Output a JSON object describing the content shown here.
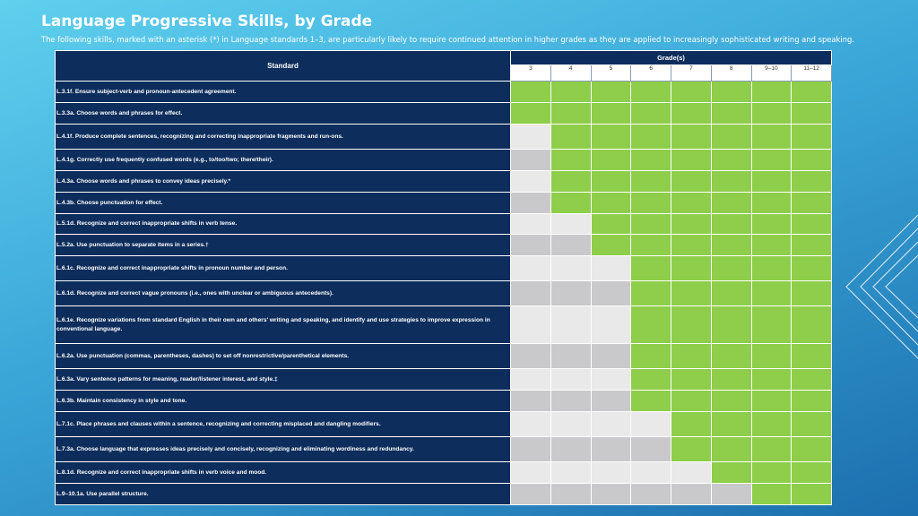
{
  "header": {
    "title": "Language Progressive Skills, by Grade",
    "subtitle": "The following skills, marked with an asterisk (*) in Language standards 1–3, are particularly likely to require continued attention in higher grades as they are applied to increasingly sophisticated writing and speaking."
  },
  "table": {
    "standard_header": "Standard",
    "grades_header": "Grade(s)",
    "grades": [
      "3",
      "4",
      "5",
      "6",
      "7",
      "8",
      "9–10",
      "11–12"
    ],
    "colors": {
      "applies": "#8ece4a",
      "not_applicable_light": "#e9e9ea",
      "not_applicable_dark": "#c9c9cc",
      "label_bg": "#0d2d5c"
    },
    "rows": [
      {
        "standard": "L.3.1f. Ensure subject-verb and pronoun-antecedent agreement.",
        "start_grade_index": 0
      },
      {
        "standard": "L.3.3a. Choose words and phrases for effect.",
        "start_grade_index": 0
      },
      {
        "standard": "L.4.1f. Produce complete sentences, recognizing and correcting inappropriate fragments and run-ons.",
        "start_grade_index": 1
      },
      {
        "standard": "L.4.1g. Correctly use frequently confused words (e.g., to/too/two; there/their).",
        "start_grade_index": 1
      },
      {
        "standard": "L.4.3a. Choose words and phrases to convey ideas precisely.*",
        "start_grade_index": 1
      },
      {
        "standard": "L.4.3b. Choose punctuation for effect.",
        "start_grade_index": 1
      },
      {
        "standard": "L.5.1d. Recognize and correct inappropriate shifts in verb tense.",
        "start_grade_index": 2
      },
      {
        "standard": "L.5.2a. Use punctuation to separate items in a series.†",
        "start_grade_index": 2
      },
      {
        "standard": "L.6.1c. Recognize and correct inappropriate shifts in pronoun number and person.",
        "start_grade_index": 3
      },
      {
        "standard": "L.6.1d. Recognize and correct vague pronouns (i.e., ones with unclear or ambiguous antecedents).",
        "start_grade_index": 3
      },
      {
        "standard": "L.6.1e. Recognize variations from standard English in their own and others' writing and speaking, and identify and use strategies to improve expression in conventional language.",
        "start_grade_index": 3
      },
      {
        "standard": "L.6.2a. Use punctuation (commas, parentheses, dashes) to set off nonrestrictive/parenthetical elements.",
        "start_grade_index": 3
      },
      {
        "standard": "L.6.3a. Vary sentence patterns for meaning, reader/listener interest, and style.‡",
        "start_grade_index": 3
      },
      {
        "standard": "L.6.3b. Maintain consistency in style and tone.",
        "start_grade_index": 3
      },
      {
        "standard": "L.7.1c. Place phrases and clauses within a sentence, recognizing and correcting misplaced and dangling modifiers.",
        "start_grade_index": 4
      },
      {
        "standard": "L.7.3a. Choose language that expresses ideas precisely and concisely, recognizing and eliminating wordiness and redundancy.",
        "start_grade_index": 4
      },
      {
        "standard": "L.8.1d. Recognize and correct inappropriate shifts in verb voice and mood.",
        "start_grade_index": 5
      },
      {
        "standard": "L.9–10.1a. Use parallel structure.",
        "start_grade_index": 6
      }
    ]
  }
}
